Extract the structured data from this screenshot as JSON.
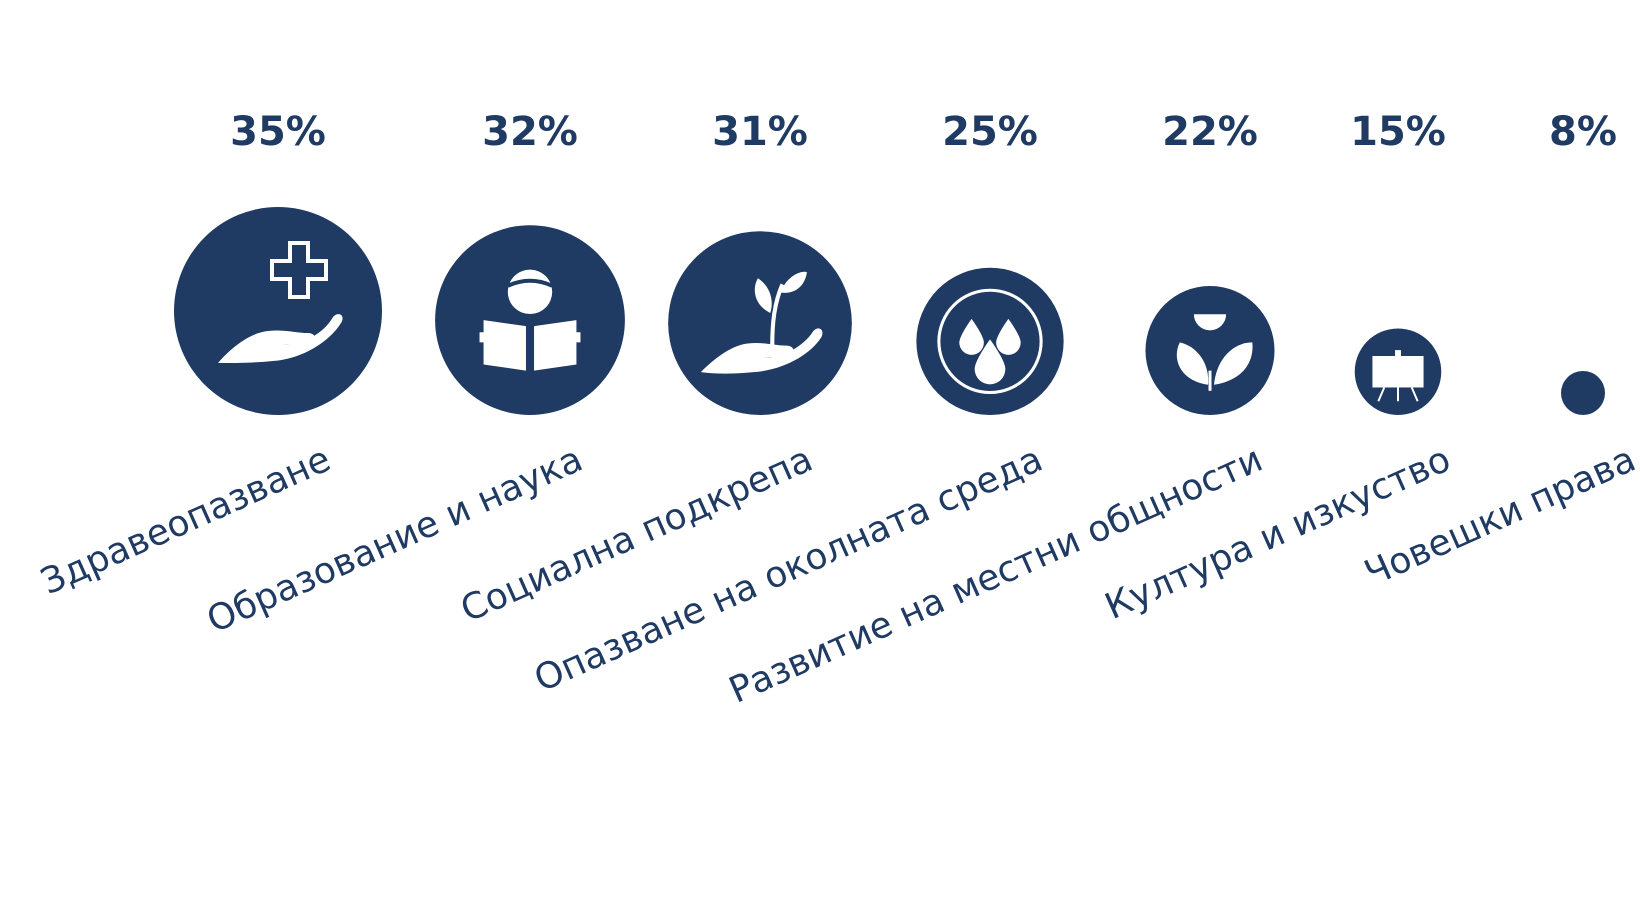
{
  "colors": {
    "accent": "#1f3a63",
    "icon": "#ffffff"
  },
  "chart_data": {
    "type": "bubble",
    "title": "",
    "unit": "%",
    "categories": [
      "Здравеопазване",
      "Образование и наука",
      "Социална подкрепа",
      "Опазване на околната среда",
      "Развитие на местни общности",
      "Култура и изкуство",
      "Човешки права"
    ],
    "values": [
      35,
      32,
      31,
      25,
      22,
      15,
      8
    ],
    "value_labels": [
      "35%",
      "32%",
      "31%",
      "25%",
      "22%",
      "15%",
      "8%"
    ],
    "icons": [
      "hand-cross-icon",
      "reading-person-icon",
      "hand-sprout-icon",
      "water-drops-icon",
      "sun-leaves-icon",
      "easel-icon",
      ""
    ]
  }
}
